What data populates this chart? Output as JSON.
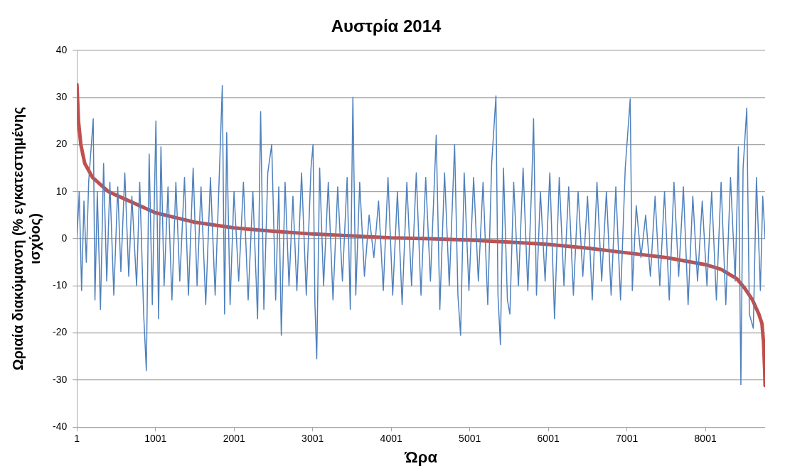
{
  "chart_data": {
    "type": "line",
    "title": "Αυστρία 2014",
    "xlabel": "Ώρα",
    "ylabel": "Ωριαία διακύμανση (% εγκατεστημένης ισχύος)",
    "xlim": [
      1,
      8760
    ],
    "xticks": [
      1,
      1001,
      2001,
      3001,
      4001,
      5001,
      6001,
      7001,
      8001
    ],
    "ylim": [
      -40,
      40
    ],
    "yticks": [
      -40,
      -30,
      -20,
      -10,
      0,
      10,
      20,
      30,
      40
    ],
    "grid": "y",
    "legend": false,
    "marker": "none",
    "line_style": "solid",
    "series": [
      {
        "color": "#4f81bd",
        "x": [
          1,
          30,
          60,
          90,
          120,
          150,
          208,
          230,
          260,
          300,
          340,
          380,
          420,
          470,
          520,
          560,
          610,
          660,
          700,
          760,
          800,
          850,
          884,
          920,
          960,
          1006,
          1040,
          1070,
          1110,
          1160,
          1210,
          1260,
          1310,
          1370,
          1420,
          1480,
          1530,
          1580,
          1640,
          1700,
          1760,
          1820,
          1851,
          1880,
          1907,
          1950,
          2000,
          2060,
          2120,
          2180,
          2240,
          2300,
          2339,
          2380,
          2430,
          2480,
          2530,
          2570,
          2602,
          2650,
          2700,
          2750,
          2800,
          2860,
          2920,
          2980,
          3006,
          3030,
          3053,
          3090,
          3140,
          3200,
          3260,
          3320,
          3380,
          3440,
          3480,
          3513,
          3550,
          3600,
          3660,
          3720,
          3780,
          3840,
          3900,
          3960,
          4020,
          4080,
          4140,
          4200,
          4260,
          4320,
          4380,
          4440,
          4500,
          4574,
          4620,
          4680,
          4740,
          4808,
          4850,
          4884,
          4930,
          4990,
          5050,
          5110,
          5170,
          5230,
          5280,
          5334,
          5360,
          5391,
          5430,
          5480,
          5512,
          5560,
          5620,
          5680,
          5740,
          5790,
          5813,
          5850,
          5900,
          5960,
          6020,
          6080,
          6140,
          6200,
          6260,
          6320,
          6380,
          6440,
          6500,
          6560,
          6620,
          6680,
          6740,
          6800,
          6860,
          6920,
          6980,
          7043,
          7070,
          7120,
          7180,
          7240,
          7300,
          7360,
          7420,
          7480,
          7540,
          7600,
          7660,
          7720,
          7780,
          7840,
          7900,
          7960,
          8020,
          8080,
          8140,
          8200,
          8260,
          8320,
          8380,
          8420,
          8452,
          8480,
          8527,
          8560,
          8610,
          8650,
          8700,
          8730,
          8760
        ],
        "values": [
          0,
          10,
          -11,
          8,
          -5,
          12,
          25.5,
          -13,
          10,
          -15,
          16,
          -9,
          12,
          -12,
          11,
          -7,
          14,
          -8,
          9,
          -10,
          12,
          -16,
          -28,
          18,
          -14,
          25,
          -17,
          19.5,
          -10,
          11,
          -13,
          12,
          -9,
          13,
          -12,
          15,
          -10,
          11,
          -14,
          13,
          -12,
          17,
          32.5,
          -16,
          22.5,
          -14,
          10,
          -9,
          12,
          -13,
          10,
          -17,
          27,
          -15,
          14,
          20,
          -13,
          11,
          -20.5,
          12,
          -10,
          9,
          -11,
          14,
          -12,
          15,
          20,
          -14,
          -25.5,
          15,
          -10,
          12,
          -13,
          11,
          -9,
          13,
          -15,
          30,
          -12,
          12,
          -8,
          5,
          -4,
          8,
          -11,
          13,
          -12,
          10,
          -14,
          12,
          -10,
          14,
          -12,
          13,
          -9,
          22,
          -15,
          14,
          -10,
          20,
          -12,
          -20.5,
          14,
          -11,
          13,
          -9,
          12,
          -14,
          16,
          30.3,
          -12,
          -22.5,
          15,
          -13,
          -16,
          12,
          -10,
          15,
          -11,
          12,
          25.5,
          -12,
          10,
          -9,
          14,
          -17,
          13,
          -10,
          11,
          -12,
          10,
          -8,
          9,
          -13,
          12,
          -9,
          10,
          -12,
          11,
          -13,
          15,
          29.7,
          -11,
          7,
          -4,
          5,
          -8,
          9,
          -10,
          10,
          -13,
          12,
          -8,
          11,
          -14,
          9,
          -9,
          8,
          -10,
          10,
          -13,
          12,
          -14,
          13,
          -9,
          19.5,
          -31,
          15,
          27.7,
          -16,
          -19,
          13,
          -11,
          9,
          0
        ]
      },
      {
        "color": "#c0504d",
        "x": [
          1,
          20,
          50,
          100,
          200,
          400,
          600,
          1000,
          1500,
          2000,
          2500,
          3000,
          3500,
          4000,
          4500,
          5000,
          5500,
          6000,
          6500,
          7000,
          7500,
          8000,
          8200,
          8400,
          8500,
          8600,
          8680,
          8720,
          8740,
          8755,
          8760
        ],
        "values": [
          32.7,
          25,
          20,
          16,
          13,
          10,
          8.5,
          5.5,
          3.5,
          2.3,
          1.6,
          1,
          0.6,
          0.2,
          0,
          -0.3,
          -0.7,
          -1.2,
          -2,
          -3,
          -4,
          -5.5,
          -6.5,
          -8.5,
          -10.5,
          -13,
          -16,
          -18,
          -22,
          -28,
          -31.2
        ]
      }
    ]
  }
}
